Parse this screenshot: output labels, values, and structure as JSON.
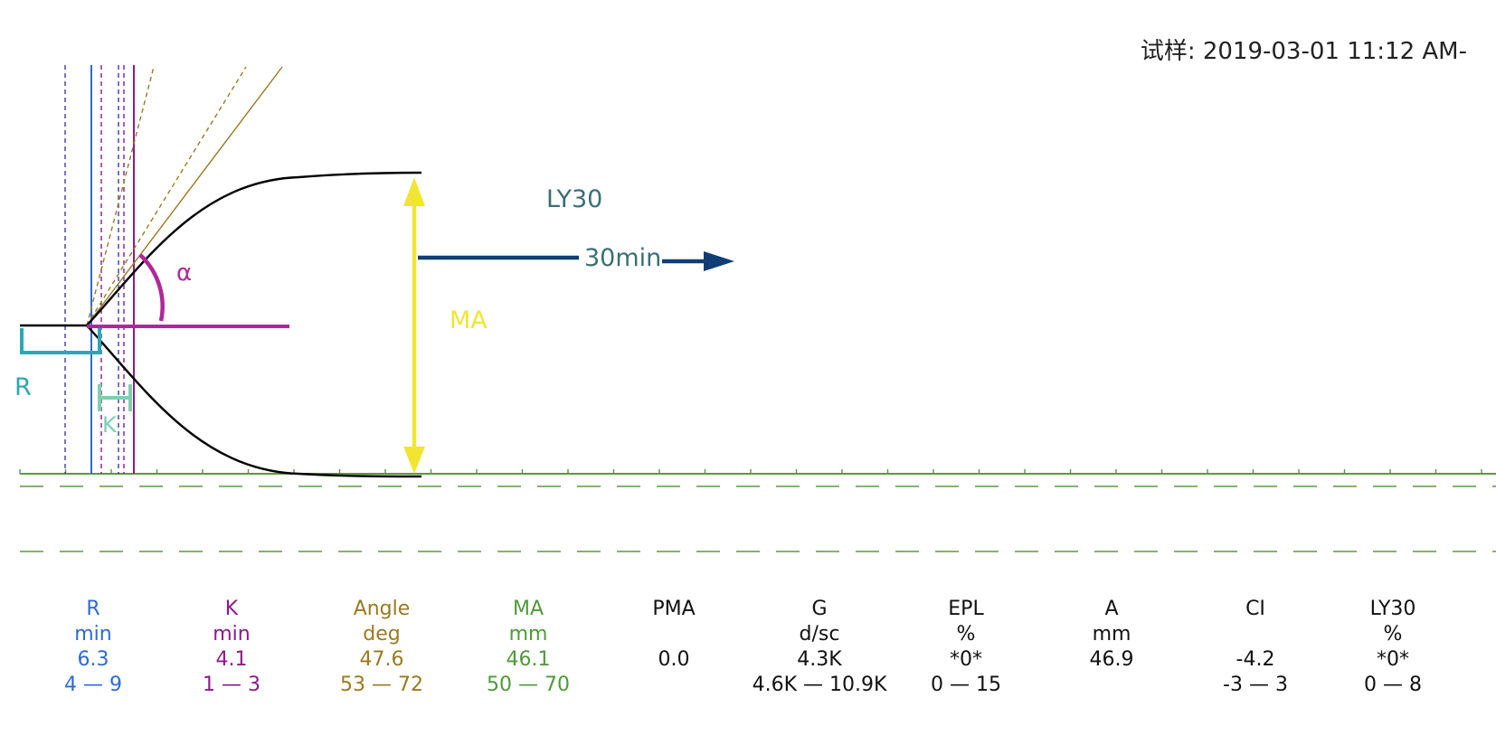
{
  "header": {
    "sample_label": "试样: 2019-03-01 11:12 AM-"
  },
  "chart_data": {
    "type": "line",
    "title": "",
    "annotations": {
      "R": "R",
      "K": "K",
      "alpha": "α",
      "MA": "MA",
      "LY30": "LY30",
      "minutes30": "30min"
    },
    "grid": false,
    "baseline": "solid green line with two dashed green reference lines below"
  },
  "colors": {
    "R": "#2d6ad6",
    "K": "#8b1a8b",
    "Angle": "#9a7a20",
    "MA": "#4e9a3a",
    "neutral": "#111111",
    "ma_arrow": "#f2e531",
    "ly30_arrow": "#0f3d75",
    "r_bracket": "#2aa8b4",
    "k_bracket": "#7ad1ad",
    "alpha_arc": "#b0279a",
    "baseline": "#5a9a3c"
  },
  "params": [
    {
      "name": "R",
      "unit": "min",
      "value": "6.3",
      "range": "4 — 9",
      "color": "R"
    },
    {
      "name": "K",
      "unit": "min",
      "value": "4.1",
      "range": "1 — 3",
      "color": "K"
    },
    {
      "name": "Angle",
      "unit": "deg",
      "value": "47.6",
      "range": "53 — 72",
      "color": "Angle"
    },
    {
      "name": "MA",
      "unit": "mm",
      "value": "46.1",
      "range": "50 — 70",
      "color": "MA"
    },
    {
      "name": "PMA",
      "unit": "",
      "value": "0.0",
      "range": "",
      "color": "neutral"
    },
    {
      "name": "G",
      "unit": "d/sc",
      "value": "4.3K",
      "range": "4.6K — 10.9K",
      "color": "neutral"
    },
    {
      "name": "EPL",
      "unit": "%",
      "value": "*0*",
      "range": "0 — 15",
      "color": "neutral"
    },
    {
      "name": "A",
      "unit": "mm",
      "value": "46.9",
      "range": "",
      "color": "neutral"
    },
    {
      "name": "CI",
      "unit": "",
      "value": "-4.2",
      "range": "-3 — 3",
      "color": "neutral"
    },
    {
      "name": "LY30",
      "unit": "%",
      "value": "*0*",
      "range": "0 — 8",
      "color": "neutral"
    }
  ]
}
